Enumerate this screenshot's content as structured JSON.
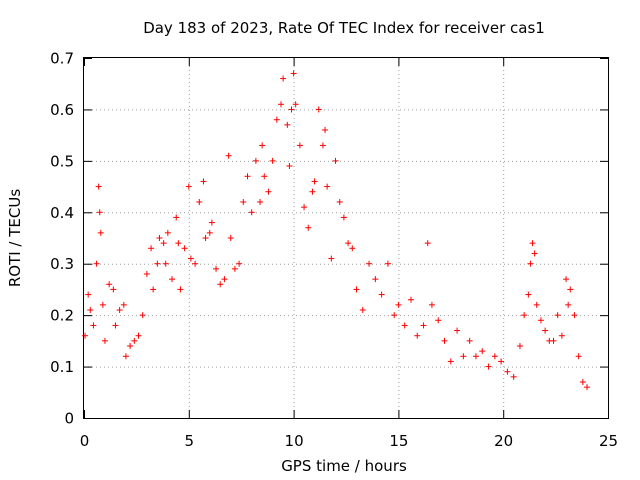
{
  "chart_data": {
    "type": "scatter",
    "title": "Day 183 of 2023, Rate Of TEC Index for receiver cas1",
    "xlabel": "GPS time / hours",
    "ylabel": "ROTI / TECUs",
    "xlim": [
      0,
      25
    ],
    "ylim": [
      0,
      0.7
    ],
    "xticks": [
      "0",
      "5",
      "10",
      "15",
      "20",
      "25"
    ],
    "yticks": [
      "0",
      "0.1",
      "0.2",
      "0.3",
      "0.4",
      "0.5",
      "0.6",
      "0.7"
    ],
    "grid": true,
    "marker": "+",
    "color": "#ff0000",
    "series": [
      {
        "x": [
          0.05,
          0.2,
          0.3,
          0.45,
          0.6,
          0.7,
          0.75,
          0.8,
          0.9,
          1.0,
          1.2,
          1.4,
          1.5,
          1.7,
          1.9,
          2.0,
          2.2,
          2.4,
          2.6,
          2.8,
          3.0,
          3.2,
          3.3,
          3.5,
          3.6,
          3.8,
          3.9,
          4.0,
          4.2,
          4.4,
          4.5,
          4.6,
          4.8,
          5.0,
          5.1,
          5.3,
          5.5,
          5.7,
          5.8,
          6.0,
          6.1,
          6.3,
          6.5,
          6.7,
          6.9,
          7.0,
          7.2,
          7.4,
          7.6,
          7.8,
          8.0,
          8.2,
          8.4,
          8.5,
          8.6,
          8.8,
          9.0,
          9.2,
          9.4,
          9.5,
          9.7,
          9.8,
          9.9,
          10.0,
          10.1,
          10.3,
          10.5,
          10.7,
          10.9,
          11.0,
          11.2,
          11.4,
          11.5,
          11.6,
          11.8,
          12.0,
          12.2,
          12.4,
          12.6,
          12.8,
          13.0,
          13.3,
          13.6,
          13.9,
          14.2,
          14.5,
          14.8,
          15.0,
          15.3,
          15.6,
          15.9,
          16.2,
          16.4,
          16.6,
          16.9,
          17.2,
          17.5,
          17.8,
          18.1,
          18.4,
          18.7,
          19.0,
          19.3,
          19.6,
          19.9,
          20.2,
          20.5,
          20.8,
          21.0,
          21.2,
          21.3,
          21.4,
          21.5,
          21.6,
          21.8,
          22.0,
          22.2,
          22.4,
          22.6,
          22.8,
          23.0,
          23.1,
          23.2,
          23.4,
          23.6,
          23.8,
          24.0
        ],
        "y": [
          0.16,
          0.24,
          0.21,
          0.18,
          0.3,
          0.45,
          0.4,
          0.36,
          0.22,
          0.15,
          0.26,
          0.25,
          0.18,
          0.21,
          0.22,
          0.12,
          0.14,
          0.15,
          0.16,
          0.2,
          0.28,
          0.33,
          0.25,
          0.3,
          0.35,
          0.34,
          0.3,
          0.36,
          0.27,
          0.39,
          0.34,
          0.25,
          0.33,
          0.45,
          0.31,
          0.3,
          0.42,
          0.46,
          0.35,
          0.36,
          0.38,
          0.29,
          0.26,
          0.27,
          0.51,
          0.35,
          0.29,
          0.3,
          0.42,
          0.47,
          0.4,
          0.5,
          0.42,
          0.53,
          0.47,
          0.44,
          0.5,
          0.58,
          0.61,
          0.66,
          0.57,
          0.49,
          0.6,
          0.67,
          0.61,
          0.53,
          0.41,
          0.37,
          0.44,
          0.46,
          0.6,
          0.53,
          0.56,
          0.45,
          0.31,
          0.5,
          0.42,
          0.39,
          0.34,
          0.33,
          0.25,
          0.21,
          0.3,
          0.27,
          0.24,
          0.3,
          0.2,
          0.22,
          0.18,
          0.23,
          0.16,
          0.18,
          0.34,
          0.22,
          0.19,
          0.15,
          0.11,
          0.17,
          0.12,
          0.15,
          0.12,
          0.13,
          0.1,
          0.12,
          0.11,
          0.09,
          0.08,
          0.14,
          0.2,
          0.24,
          0.3,
          0.34,
          0.32,
          0.22,
          0.19,
          0.17,
          0.15,
          0.15,
          0.2,
          0.16,
          0.27,
          0.22,
          0.25,
          0.2,
          0.12,
          0.07,
          0.06
        ]
      }
    ]
  }
}
